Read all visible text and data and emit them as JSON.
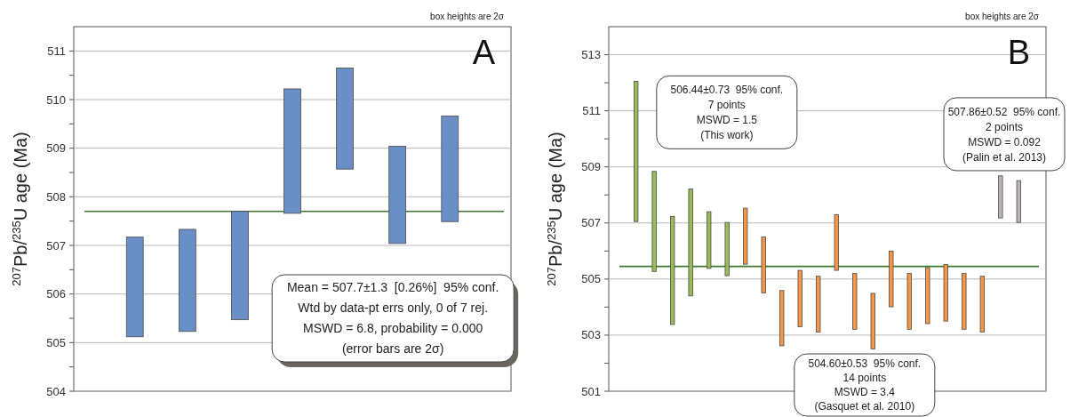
{
  "chart_data": [
    {
      "type": "bar",
      "title": "A",
      "ylabel": "$^{207}$Pb/$^{235}$U age (Ma)",
      "categories": [
        null,
        null,
        null,
        null,
        null,
        null,
        null
      ],
      "base": [
        505.12,
        505.23,
        505.47,
        507.66,
        508.57,
        507.04,
        507.49
      ],
      "values": [
        2.05,
        2.1,
        2.23,
        2.56,
        2.08,
        2.0,
        2.17
      ],
      "color": "#6a8ec6",
      "ylim": [
        504,
        511.5
      ],
      "yticks": [
        504,
        {
          "value": 504.5,
          "label": null
        },
        505,
        {
          "value": 505.5,
          "label": null
        },
        506,
        {
          "value": 506.5,
          "label": null
        },
        507,
        {
          "value": 507.5,
          "label": null
        },
        508,
        {
          "value": 508.5,
          "label": null
        },
        509,
        {
          "value": 509.5,
          "label": null
        },
        510,
        {
          "value": 510.5,
          "label": null
        },
        511
      ],
      "grid": "y",
      "ref_lines": [
        {
          "axis": "y",
          "value": 507.7,
          "color": "#3c7a2e"
        }
      ],
      "annotations": [
        "box heights are 2σ",
        "Mean = 507.7±1.3  [0.26%]  95% conf.\nWtd by data-pt errs only, 0 of 7 rej.\nMSWD = 6.8, probability = 0.000\n(error bars are 2σ)"
      ]
    },
    {
      "type": "bar",
      "title": "B",
      "ylabel": "$^{207}$Pb/$^{235}$U age (Ma)",
      "categories": [
        null,
        null,
        null,
        null,
        null,
        null,
        null,
        null,
        null,
        null,
        null,
        null,
        null,
        null,
        null,
        null,
        null,
        null,
        null,
        null,
        null,
        null
      ],
      "base": [
        507.05,
        505.27,
        503.38,
        504.4,
        505.38,
        505.12,
        505.53,
        504.51,
        502.62,
        503.3,
        503.11,
        505.31,
        503.21,
        502.51,
        504.01,
        503.21,
        503.41,
        503.5,
        503.21,
        503.11,
        507.18,
        507.02
      ],
      "values": [
        5.0,
        3.57,
        3.85,
        3.81,
        2.02,
        1.9,
        2.0,
        1.99,
        1.97,
        2.01,
        1.99,
        1.99,
        1.99,
        1.98,
        1.99,
        1.99,
        2.0,
        2.02,
        1.99,
        1.99,
        1.5,
        1.49
      ],
      "colors": [
        "#9bbb59",
        "#9bbb59",
        "#9bbb59",
        "#9bbb59",
        "#9bbb59",
        "#9bbb59",
        "#f79646",
        "#f79646",
        "#f79646",
        "#f79646",
        "#f79646",
        "#f79646",
        "#f79646",
        "#f79646",
        "#f79646",
        "#f79646",
        "#f79646",
        "#f79646",
        "#f79646",
        "#f79646",
        "#bdb3b3",
        "#bdb3b3"
      ],
      "ylim": [
        501,
        514
      ],
      "yticks": [
        501,
        {
          "value": 502,
          "label": null
        },
        503,
        {
          "value": 504,
          "label": null
        },
        505,
        {
          "value": 506,
          "label": null
        },
        507,
        {
          "value": 508,
          "label": null
        },
        509,
        {
          "value": 510,
          "label": null
        },
        511,
        {
          "value": 512,
          "label": null
        },
        513
      ],
      "grid": "y",
      "ref_lines": [
        {
          "axis": "y",
          "value": 505.45,
          "color": "#3c7a2e"
        }
      ],
      "annotations": [
        "box heights are 2σ",
        "506.44±0.73  95% conf.\n7 points\nMSWD = 1.5\n(This work)",
        "507.86±0.52  95% conf.\n2 points\nMSWD = 0.092\n(Palin et al. 2013)",
        "504.60±0.53  95% conf.\n14 points\nMSWD = 3.4\n(Gasquet et al. 2010)"
      ]
    }
  ]
}
